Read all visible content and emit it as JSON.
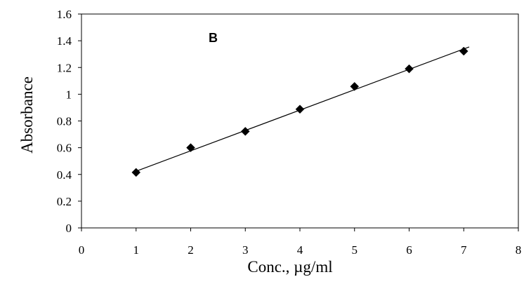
{
  "chart_data": {
    "type": "scatter",
    "annotation": "B",
    "xlabel": "Conc., µg/ml",
    "ylabel": "Absorbance",
    "xlim": [
      0,
      8
    ],
    "ylim": [
      0,
      1.6
    ],
    "xticks": [
      "0",
      "1",
      "2",
      "3",
      "4",
      "5",
      "6",
      "7",
      "8"
    ],
    "yticks": [
      "0",
      "0.2",
      "0.4",
      "0.6",
      "0.8",
      "1",
      "1.2",
      "1.4",
      "1.6"
    ],
    "grid": false,
    "legend": "none",
    "marker": "diamond",
    "series": [
      {
        "x": [
          1,
          2,
          3,
          4,
          5,
          6,
          7
        ],
        "y": [
          0.415,
          0.6,
          0.722,
          0.888,
          1.058,
          1.19,
          1.322
        ]
      }
    ],
    "trendline": {
      "type": "linear",
      "x_range": [
        1,
        7.1
      ],
      "y_at_range": [
        0.424,
        1.354
      ]
    }
  }
}
